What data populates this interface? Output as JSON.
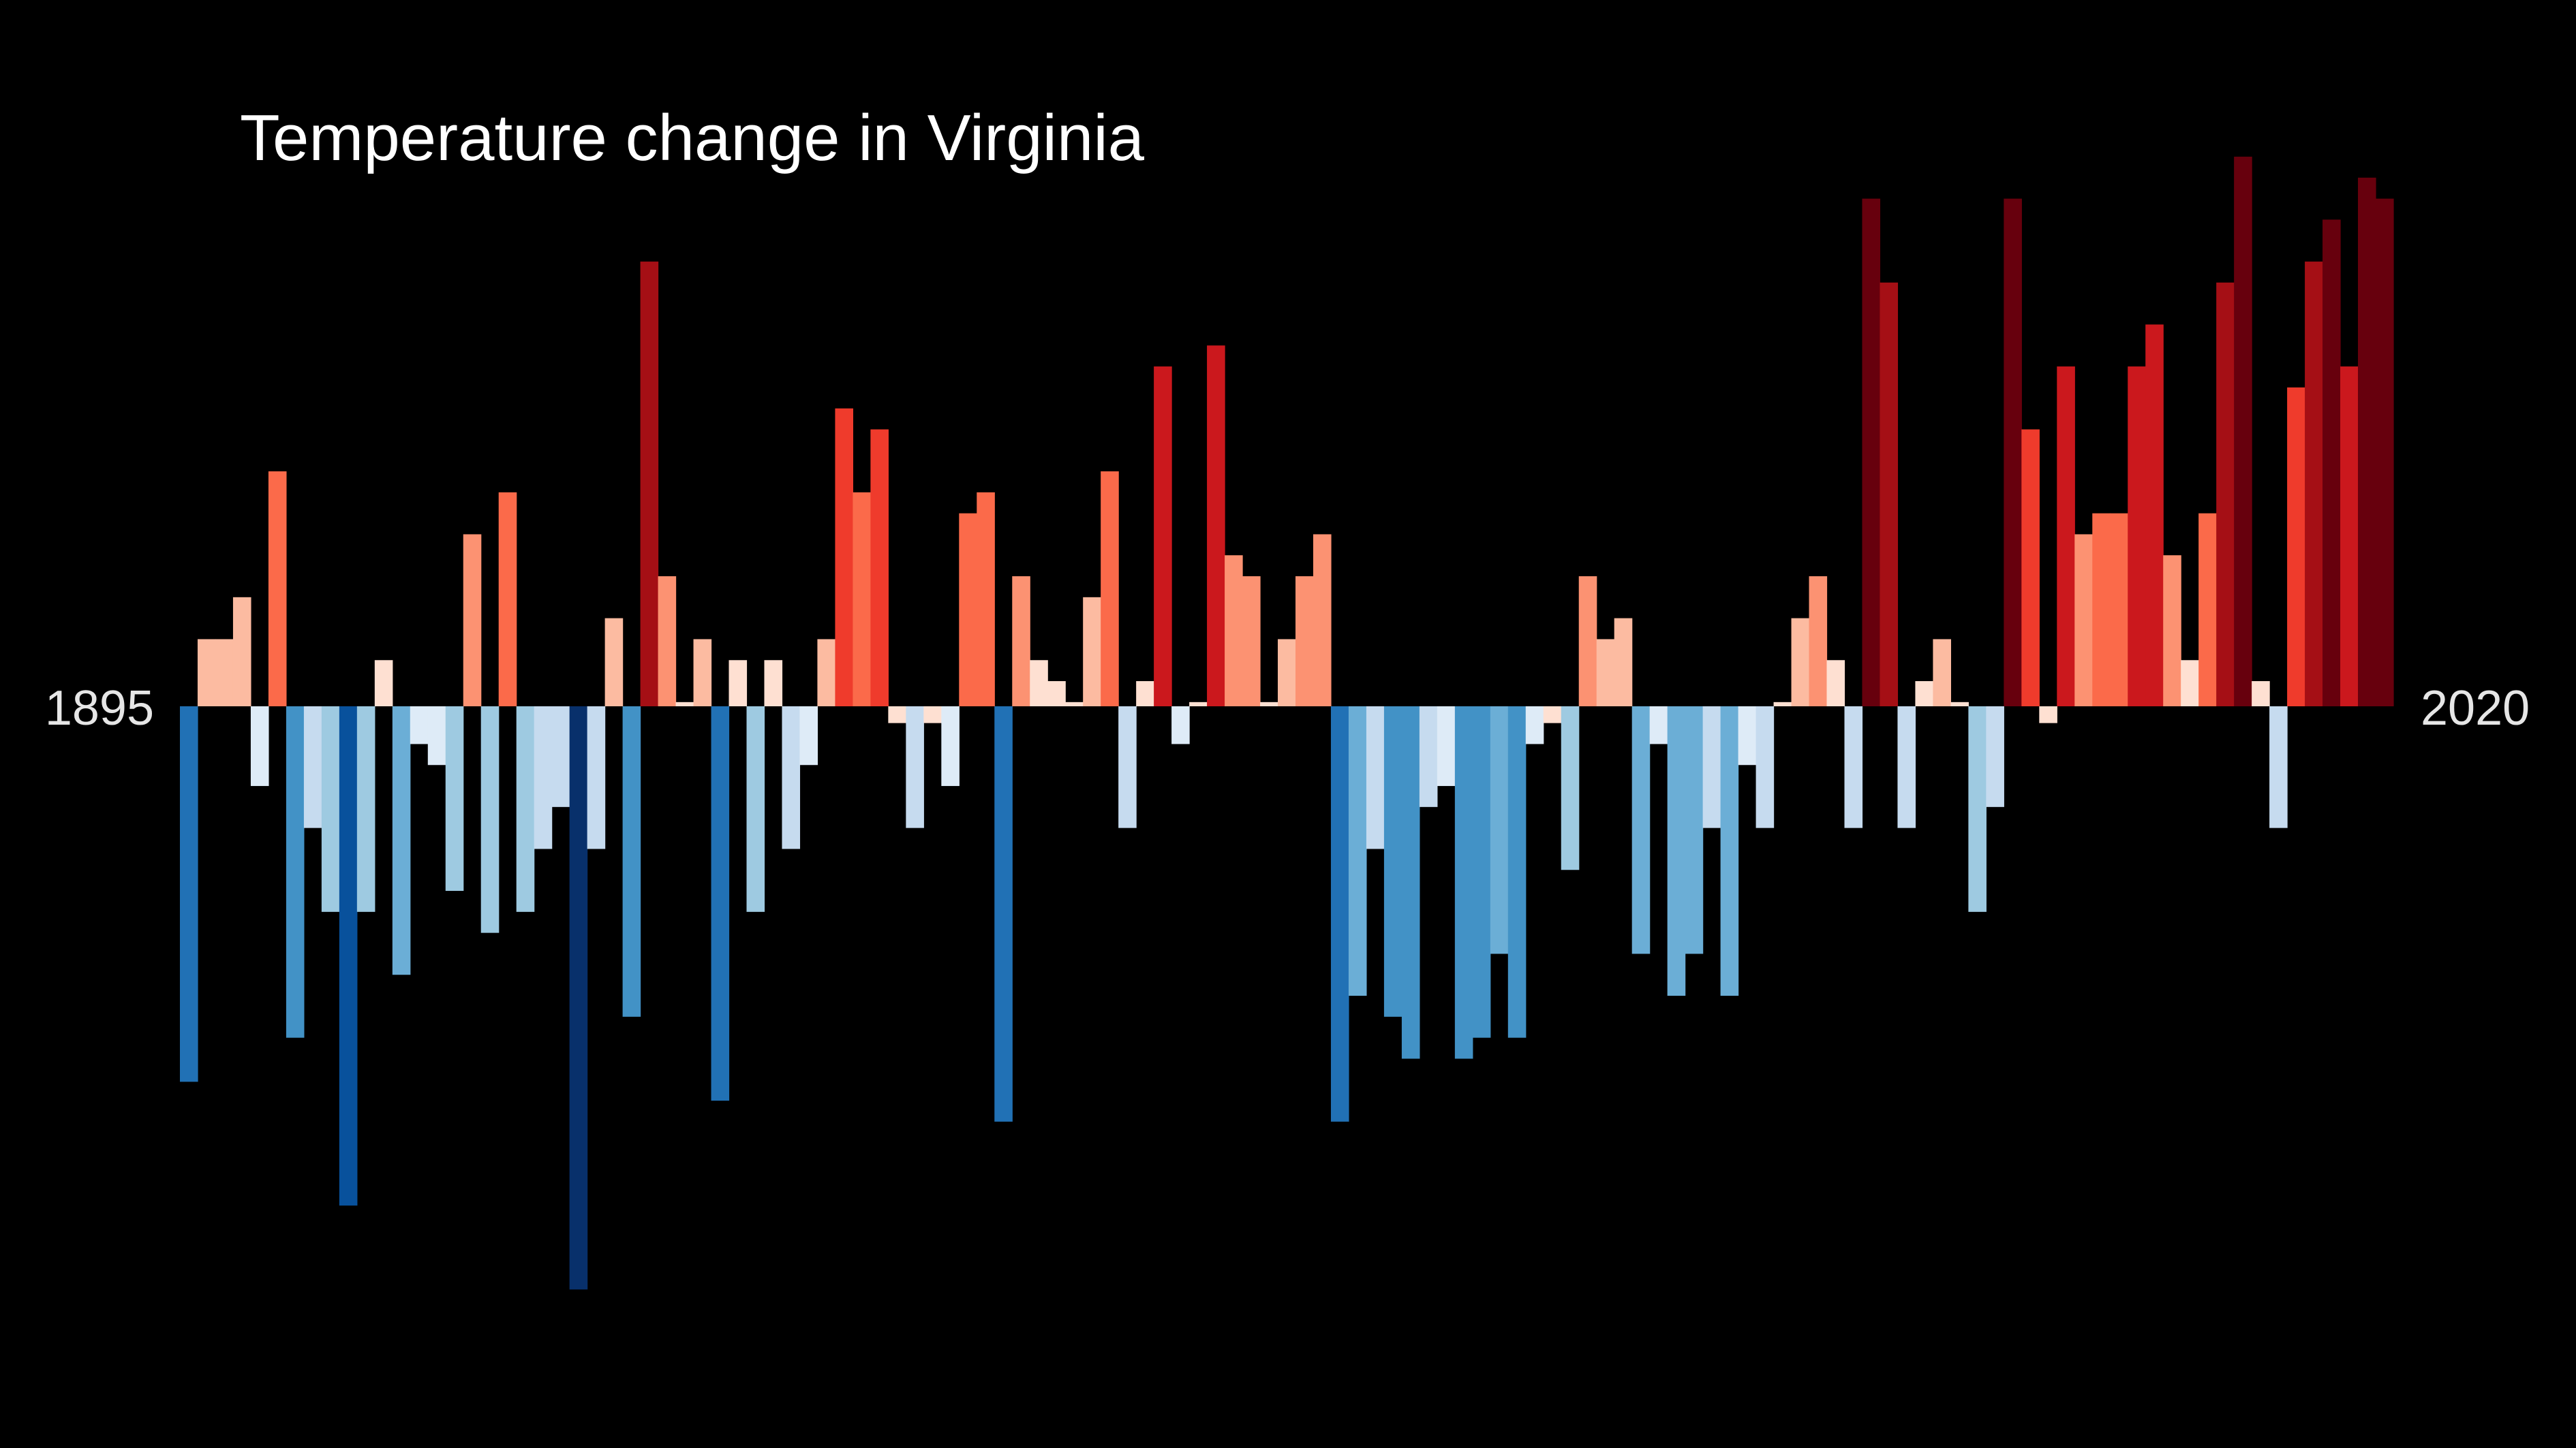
{
  "chart_data": {
    "type": "bar",
    "title": "Temperature change in Virginia",
    "xlabel": "",
    "ylabel": "",
    "x_start": 1895,
    "x_end": 2020,
    "x_start_label": "1895",
    "x_end_label": "2020",
    "background": "#000000",
    "colormap": "RdBu_r (blue = cooler, red = warmer)",
    "values": [
      -1.79,
      0.32,
      0.32,
      0.52,
      -0.38,
      1.12,
      -1.58,
      -0.58,
      -0.98,
      -2.38,
      -0.98,
      0.22,
      -1.28,
      -0.18,
      -0.28,
      -0.88,
      0.82,
      -1.08,
      1.02,
      -0.98,
      -0.68,
      -0.48,
      -2.78,
      -0.68,
      0.42,
      -1.48,
      2.12,
      0.62,
      0.02,
      0.32,
      -1.88,
      0.22,
      -0.98,
      0.22,
      -0.68,
      -0.28,
      0.32,
      1.42,
      1.02,
      1.32,
      -0.08,
      -0.58,
      -0.08,
      -0.38,
      0.92,
      1.02,
      -1.98,
      0.62,
      0.22,
      0.12,
      0.02,
      0.52,
      1.12,
      -0.58,
      0.12,
      1.62,
      -0.18,
      0.02,
      1.72,
      0.72,
      0.62,
      0.02,
      0.32,
      0.62,
      0.82,
      -1.98,
      -1.38,
      -0.68,
      -1.48,
      -1.68,
      -0.48,
      -0.38,
      -1.68,
      -1.58,
      -1.18,
      -1.58,
      -0.18,
      -0.08,
      -0.78,
      0.62,
      0.32,
      0.42,
      -1.18,
      -0.18,
      -1.38,
      -1.18,
      -0.58,
      -1.38,
      -0.28,
      -0.58,
      0.02,
      0.42,
      0.62,
      0.22,
      -0.58,
      2.42,
      2.02,
      -0.58,
      0.12,
      0.32,
      0.02,
      -0.98,
      -0.48,
      2.42,
      1.32,
      -0.08,
      1.62,
      0.82,
      0.92,
      0.92,
      1.62,
      1.82,
      0.72,
      0.22,
      0.92,
      2.02,
      2.62,
      0.12,
      -0.58,
      1.52,
      2.12,
      2.32,
      1.62,
      2.52,
      2.42
    ],
    "ylim": [
      -3.3,
      2.85
    ]
  }
}
